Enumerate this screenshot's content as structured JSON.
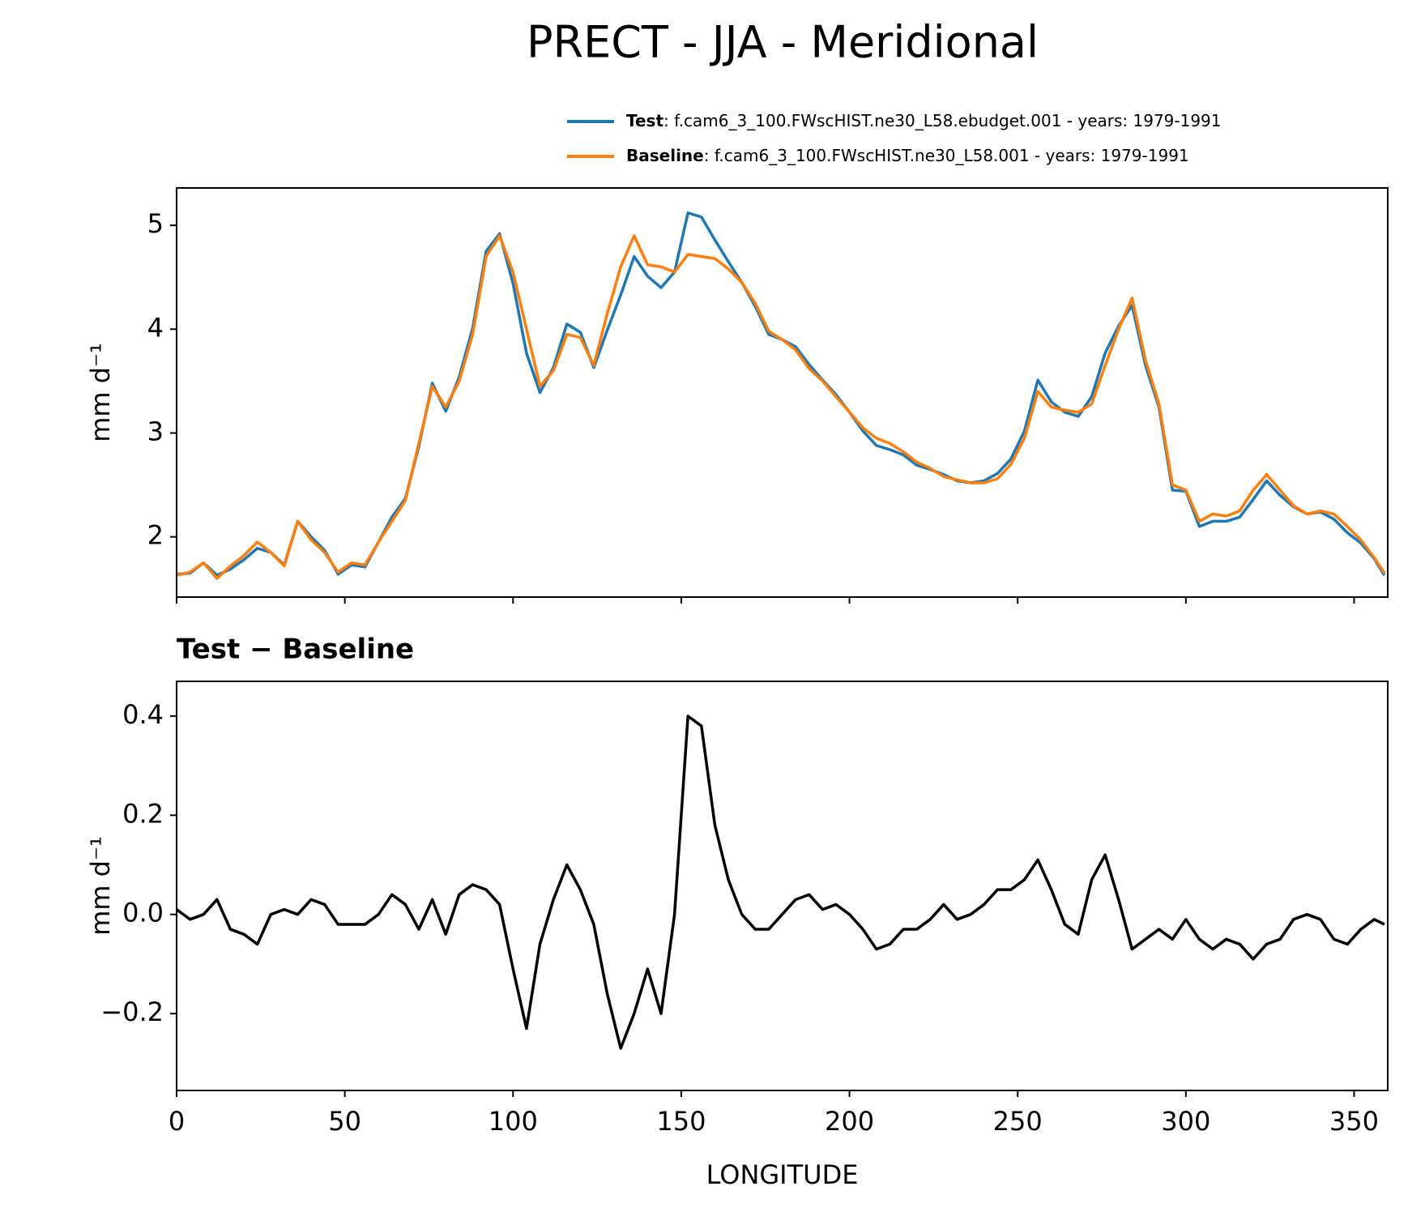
{
  "chart_data": [
    {
      "type": "line",
      "title": "PRECT - JJA - Meridional",
      "ylabel": "mm d⁻¹",
      "x": [
        0,
        4,
        8,
        12,
        16,
        20,
        24,
        28,
        32,
        36,
        40,
        44,
        48,
        52,
        56,
        60,
        64,
        68,
        72,
        76,
        80,
        84,
        88,
        92,
        96,
        100,
        104,
        108,
        112,
        116,
        120,
        124,
        128,
        132,
        136,
        140,
        144,
        148,
        152,
        156,
        160,
        164,
        168,
        172,
        176,
        180,
        184,
        188,
        192,
        196,
        200,
        204,
        208,
        212,
        216,
        220,
        224,
        228,
        232,
        236,
        240,
        244,
        248,
        252,
        256,
        260,
        264,
        268,
        272,
        276,
        280,
        284,
        288,
        292,
        296,
        300,
        304,
        308,
        312,
        316,
        320,
        324,
        328,
        332,
        336,
        340,
        344,
        348,
        352,
        356,
        359
      ],
      "series": [
        {
          "name": "Test",
          "description": ": f.cam6_3_100.FWscHIST.ne30_L58.ebudget.001 - years: 1979-1991",
          "color": "#1f77b4",
          "values": [
            1.64,
            1.65,
            1.75,
            1.63,
            1.69,
            1.78,
            1.89,
            1.85,
            1.73,
            2.15,
            2.0,
            1.87,
            1.64,
            1.73,
            1.71,
            1.95,
            2.19,
            2.37,
            2.87,
            3.48,
            3.21,
            3.54,
            4.01,
            4.75,
            4.92,
            4.44,
            3.77,
            3.39,
            3.63,
            4.05,
            3.97,
            3.63,
            3.99,
            4.33,
            4.7,
            4.51,
            4.4,
            4.55,
            5.12,
            5.08,
            4.86,
            4.65,
            4.45,
            4.22,
            3.95,
            3.9,
            3.83,
            3.66,
            3.51,
            3.37,
            3.2,
            3.02,
            2.88,
            2.84,
            2.79,
            2.69,
            2.65,
            2.6,
            2.54,
            2.52,
            2.54,
            2.61,
            2.75,
            3.02,
            3.51,
            3.3,
            3.2,
            3.16,
            3.35,
            3.77,
            4.03,
            4.23,
            3.65,
            3.25,
            2.45,
            2.44,
            2.1,
            2.15,
            2.15,
            2.19,
            2.36,
            2.54,
            2.4,
            2.29,
            2.22,
            2.24,
            2.17,
            2.04,
            1.94,
            1.79,
            1.63
          ]
        },
        {
          "name": "Baseline",
          "description": ": f.cam6_3_100.FWscHIST.ne30_L58.001 - years: 1979-1991",
          "color": "#ff7f0e",
          "values": [
            1.63,
            1.66,
            1.75,
            1.6,
            1.72,
            1.82,
            1.95,
            1.85,
            1.72,
            2.15,
            1.97,
            1.85,
            1.66,
            1.75,
            1.73,
            1.95,
            2.15,
            2.35,
            2.9,
            3.45,
            3.25,
            3.5,
            3.95,
            4.7,
            4.9,
            4.55,
            4.0,
            3.45,
            3.6,
            3.95,
            3.92,
            3.65,
            4.15,
            4.6,
            4.9,
            4.62,
            4.6,
            4.55,
            4.72,
            4.7,
            4.68,
            4.58,
            4.45,
            4.25,
            3.98,
            3.9,
            3.8,
            3.62,
            3.5,
            3.35,
            3.2,
            3.05,
            2.95,
            2.9,
            2.82,
            2.72,
            2.66,
            2.58,
            2.55,
            2.52,
            2.52,
            2.56,
            2.7,
            2.95,
            3.4,
            3.25,
            3.22,
            3.2,
            3.28,
            3.65,
            4.0,
            4.3,
            3.7,
            3.28,
            2.5,
            2.45,
            2.15,
            2.22,
            2.2,
            2.25,
            2.45,
            2.6,
            2.45,
            2.3,
            2.22,
            2.25,
            2.22,
            2.1,
            1.97,
            1.8,
            1.65
          ]
        }
      ],
      "xlim": [
        0,
        360
      ],
      "xticks": [
        0,
        50,
        100,
        150,
        200,
        250,
        300,
        350
      ],
      "ylim": [
        1.42,
        5.36
      ],
      "yticks": [
        2,
        3,
        4,
        5
      ]
    },
    {
      "type": "line",
      "title": "Test − Baseline",
      "ylabel": "mm d⁻¹",
      "xlabel": "LONGITUDE",
      "x": [
        0,
        4,
        8,
        12,
        16,
        20,
        24,
        28,
        32,
        36,
        40,
        44,
        48,
        52,
        56,
        60,
        64,
        68,
        72,
        76,
        80,
        84,
        88,
        92,
        96,
        100,
        104,
        108,
        112,
        116,
        120,
        124,
        128,
        132,
        136,
        140,
        144,
        148,
        152,
        156,
        160,
        164,
        168,
        172,
        176,
        180,
        184,
        188,
        192,
        196,
        200,
        204,
        208,
        212,
        216,
        220,
        224,
        228,
        232,
        236,
        240,
        244,
        248,
        252,
        256,
        260,
        264,
        268,
        272,
        276,
        280,
        284,
        288,
        292,
        296,
        300,
        304,
        308,
        312,
        316,
        320,
        324,
        328,
        332,
        336,
        340,
        344,
        348,
        352,
        356,
        359
      ],
      "series": [
        {
          "color": "#000000",
          "values": [
            0.01,
            -0.01,
            0.0,
            0.03,
            -0.03,
            -0.04,
            -0.06,
            0.0,
            0.01,
            0.0,
            0.03,
            0.02,
            -0.02,
            -0.02,
            -0.02,
            0.0,
            0.04,
            0.02,
            -0.03,
            0.03,
            -0.04,
            0.04,
            0.06,
            0.05,
            0.02,
            -0.11,
            -0.23,
            -0.06,
            0.03,
            0.1,
            0.05,
            -0.02,
            -0.16,
            -0.27,
            -0.2,
            -0.11,
            -0.2,
            0.0,
            0.4,
            0.38,
            0.18,
            0.07,
            0.0,
            -0.03,
            -0.03,
            0.0,
            0.03,
            0.04,
            0.01,
            0.02,
            0.0,
            -0.03,
            -0.07,
            -0.06,
            -0.03,
            -0.03,
            -0.01,
            0.02,
            -0.01,
            0.0,
            0.02,
            0.05,
            0.05,
            0.07,
            0.11,
            0.05,
            -0.02,
            -0.04,
            0.07,
            0.12,
            0.03,
            -0.07,
            -0.05,
            -0.03,
            -0.05,
            -0.01,
            -0.05,
            -0.07,
            -0.05,
            -0.06,
            -0.09,
            -0.06,
            -0.05,
            -0.01,
            0.0,
            -0.01,
            -0.05,
            -0.06,
            -0.03,
            -0.01,
            -0.02
          ]
        }
      ],
      "xlim": [
        0,
        360
      ],
      "xticks": [
        0,
        50,
        100,
        150,
        200,
        250,
        300,
        350
      ],
      "ylim": [
        -0.355,
        0.47
      ],
      "yticks": [
        {
          "value": -0.2,
          "label": "−0.2"
        },
        {
          "value": 0,
          "label": "0.0"
        },
        0.2,
        0.4
      ]
    }
  ]
}
